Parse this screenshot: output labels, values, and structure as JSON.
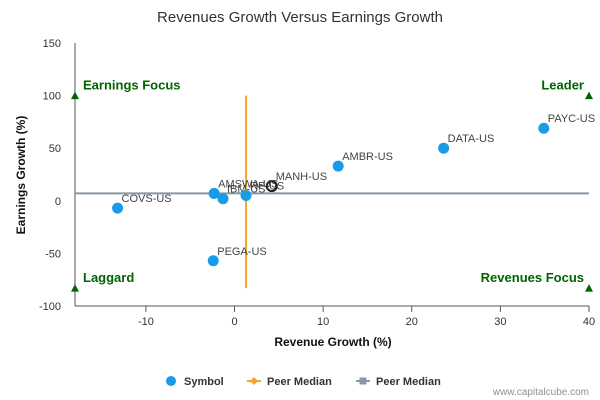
{
  "chart_data": {
    "type": "scatter",
    "title": "Revenues Growth Versus Earnings Growth",
    "xlabel": "Revenue Growth (%)",
    "ylabel": "Earnings Growth (%)",
    "xlim": [
      -18,
      40
    ],
    "ylim": [
      -100,
      150
    ],
    "xticks": [
      -10,
      0,
      10,
      20,
      30,
      40
    ],
    "yticks": [
      -100,
      -50,
      0,
      50,
      100,
      150
    ],
    "series": [
      {
        "name": "Symbol",
        "color": "#1a9be8",
        "points": [
          {
            "label": "PAYC-US",
            "x": 34.9,
            "y": 69
          },
          {
            "label": "DATA-US",
            "x": 23.6,
            "y": 50
          },
          {
            "label": "AMBR-US",
            "x": 11.7,
            "y": 33
          },
          {
            "label": "AMSWA-US",
            "x": -2.3,
            "y": 7
          },
          {
            "label": "IBM-US",
            "x": -1.3,
            "y": 2
          },
          {
            "label": "RP-US",
            "x": 1.3,
            "y": 5
          },
          {
            "label": "COVS-US",
            "x": -13.2,
            "y": -7
          },
          {
            "label": "PEGA-US",
            "x": -2.4,
            "y": -57
          }
        ]
      }
    ],
    "highlight": {
      "label": "MANH-US",
      "x": 4.2,
      "y": 14
    },
    "peer_median_revenue": {
      "name": "Peer Median",
      "x": 1.3,
      "y_from": -83,
      "y_to": 100,
      "color": "#f5a623"
    },
    "peer_median_earnings": {
      "name": "Peer Median",
      "y": 7,
      "color": "#8a96a6"
    },
    "quadrants": [
      {
        "label": "Earnings Focus",
        "x": -18,
        "y": 100
      },
      {
        "label": "Leader",
        "x": 40,
        "y": 100
      },
      {
        "label": "Laggard",
        "x": -18,
        "y": -83
      },
      {
        "label": "Revenues Focus",
        "x": 40,
        "y": -83
      }
    ],
    "quadrant_color": "#006400",
    "legend": [
      {
        "name": "Symbol",
        "kind": "dot",
        "color": "#1a9be8"
      },
      {
        "name": "Peer Median",
        "kind": "line-diamond",
        "color": "#f5a623"
      },
      {
        "name": "Peer Median",
        "kind": "line-square",
        "color": "#8a96a6"
      }
    ],
    "legend_position": "bottom",
    "grid": false
  },
  "credits": "www.capitalcube.com"
}
